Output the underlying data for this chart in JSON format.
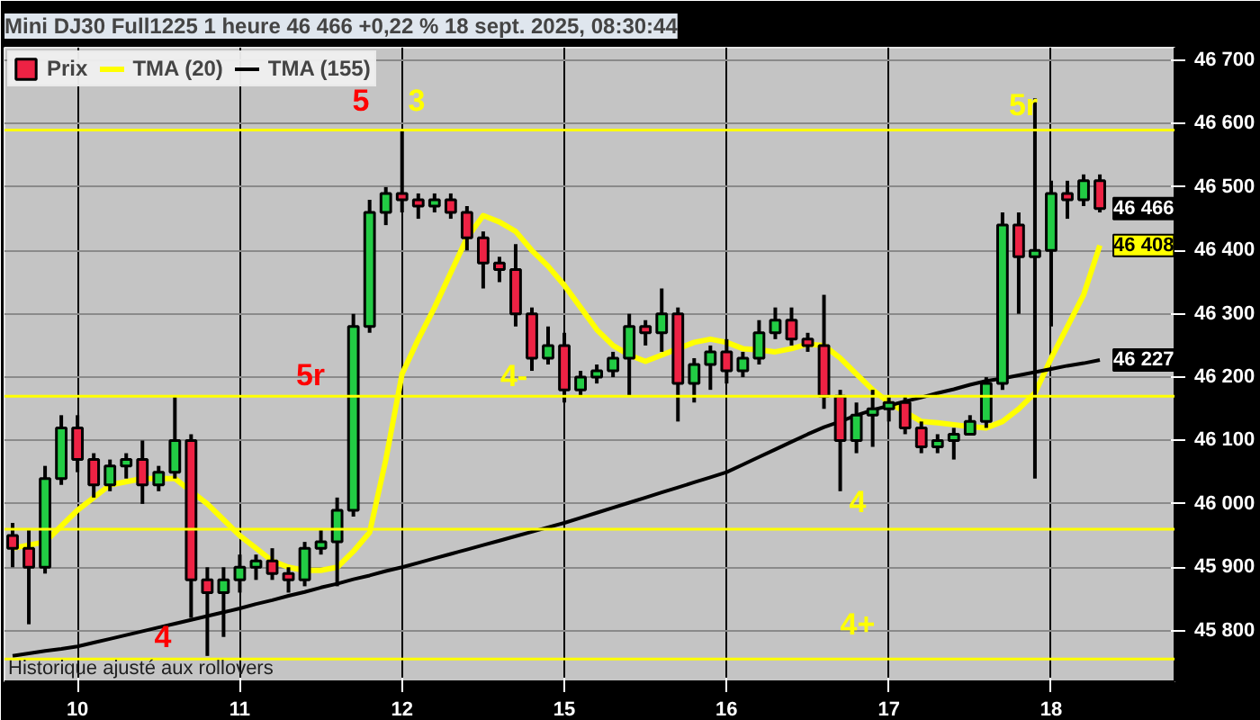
{
  "chart_data": {
    "type": "candlestick",
    "title": "Mini DJ30 Full1225 1 heure 46 466 +0,22 % 18 sept. 2025, 08:30:44",
    "categories": [
      null,
      null,
      null,
      null,
      "10",
      null,
      null,
      null,
      null,
      null,
      null,
      null,
      null,
      null,
      "11",
      null,
      null,
      null,
      null,
      null,
      null,
      null,
      null,
      null,
      "12",
      null,
      null,
      null,
      null,
      null,
      null,
      null,
      null,
      null,
      "15",
      null,
      null,
      null,
      null,
      null,
      null,
      null,
      null,
      null,
      "16",
      null,
      null,
      null,
      null,
      null,
      null,
      null,
      null,
      null,
      "17",
      null,
      null,
      null,
      null,
      null,
      null,
      null,
      null,
      null,
      "18",
      null,
      null,
      null
    ],
    "series": [
      {
        "name": "Prix",
        "color": "#000000",
        "ohlc": [
          [
            45950,
            45970,
            45900,
            45930
          ],
          [
            45930,
            45960,
            45810,
            45900
          ],
          [
            45900,
            46060,
            45890,
            46040
          ],
          [
            46040,
            46140,
            46030,
            46120
          ],
          [
            46120,
            46140,
            46050,
            46070
          ],
          [
            46070,
            46080,
            46010,
            46030
          ],
          [
            46030,
            46070,
            46020,
            46060
          ],
          [
            46060,
            46080,
            46040,
            46070
          ],
          [
            46070,
            46100,
            46000,
            46030
          ],
          [
            46030,
            46060,
            46020,
            46050
          ],
          [
            46050,
            46170,
            46040,
            46100
          ],
          [
            46100,
            46110,
            45820,
            45880
          ],
          [
            45880,
            45900,
            45760,
            45860
          ],
          [
            45860,
            45900,
            45790,
            45880
          ],
          [
            45880,
            45920,
            45860,
            45900
          ],
          [
            45900,
            45920,
            45880,
            45910
          ],
          [
            45910,
            45930,
            45880,
            45890
          ],
          [
            45890,
            45900,
            45860,
            45880
          ],
          [
            45880,
            45940,
            45870,
            45930
          ],
          [
            45930,
            45960,
            45920,
            45940
          ],
          [
            45940,
            46010,
            45870,
            45990
          ],
          [
            45990,
            46300,
            45980,
            46280
          ],
          [
            46280,
            46480,
            46270,
            46460
          ],
          [
            46460,
            46500,
            46440,
            46490
          ],
          [
            46490,
            46590,
            46460,
            46480
          ],
          [
            46480,
            46490,
            46450,
            46470
          ],
          [
            46470,
            46490,
            46460,
            46480
          ],
          [
            46480,
            46490,
            46450,
            46460
          ],
          [
            46460,
            46470,
            46400,
            46420
          ],
          [
            46420,
            46430,
            46340,
            46380
          ],
          [
            46380,
            46390,
            46350,
            46370
          ],
          [
            46370,
            46410,
            46280,
            46300
          ],
          [
            46300,
            46310,
            46210,
            46230
          ],
          [
            46230,
            46280,
            46220,
            46250
          ],
          [
            46250,
            46270,
            46160,
            46180
          ],
          [
            46180,
            46210,
            46170,
            46200
          ],
          [
            46200,
            46220,
            46190,
            46210
          ],
          [
            46210,
            46240,
            46200,
            46230
          ],
          [
            46230,
            46300,
            46170,
            46280
          ],
          [
            46280,
            46290,
            46250,
            46270
          ],
          [
            46270,
            46340,
            46240,
            46300
          ],
          [
            46300,
            46310,
            46130,
            46190
          ],
          [
            46190,
            46230,
            46160,
            46220
          ],
          [
            46220,
            46250,
            46180,
            46240
          ],
          [
            46240,
            46260,
            46190,
            46210
          ],
          [
            46210,
            46240,
            46200,
            46230
          ],
          [
            46230,
            46290,
            46220,
            46270
          ],
          [
            46270,
            46310,
            46260,
            46290
          ],
          [
            46290,
            46310,
            46250,
            46260
          ],
          [
            46260,
            46270,
            46240,
            46250
          ],
          [
            46250,
            46330,
            46150,
            46170
          ],
          [
            46170,
            46180,
            46020,
            46100
          ],
          [
            46100,
            46160,
            46080,
            46140
          ],
          [
            46140,
            46180,
            46090,
            46150
          ],
          [
            46150,
            46170,
            46130,
            46160
          ],
          [
            46160,
            46170,
            46110,
            46120
          ],
          [
            46120,
            46130,
            46080,
            46090
          ],
          [
            46090,
            46110,
            46080,
            46100
          ],
          [
            46100,
            46120,
            46070,
            46110
          ],
          [
            46110,
            46140,
            46110,
            46130
          ],
          [
            46130,
            46200,
            46120,
            46190
          ],
          [
            46190,
            46460,
            46180,
            46440
          ],
          [
            46440,
            46460,
            46300,
            46390
          ],
          [
            46390,
            46640,
            46040,
            46400
          ],
          [
            46400,
            46510,
            46280,
            46490
          ],
          [
            46490,
            46510,
            46450,
            46480
          ],
          [
            46480,
            46520,
            46470,
            46510
          ],
          [
            46510,
            46520,
            46460,
            46466
          ]
        ],
        "value_labels": [
          null,
          null,
          null,
          null,
          null,
          null,
          null,
          null,
          null,
          null,
          null,
          null,
          null,
          null,
          null,
          null,
          null,
          null,
          null,
          null,
          null,
          null,
          null,
          null,
          null,
          null,
          null,
          null,
          null,
          null,
          null,
          null,
          null,
          null,
          null,
          null,
          null,
          null,
          null,
          null,
          null,
          null,
          null,
          null,
          null,
          null,
          null,
          null,
          null,
          null,
          null,
          null,
          null,
          null,
          null,
          null,
          null,
          null,
          null,
          null,
          null,
          null,
          null,
          null,
          null,
          null,
          null,
          "46 466"
        ]
      },
      {
        "name": "TMA (20)",
        "type": "line",
        "color": "#ffff00",
        "values": [
          45930,
          45935,
          45940,
          45965,
          45990,
          46010,
          46030,
          46035,
          46040,
          46040,
          46040,
          46020,
          46000,
          45975,
          45950,
          45930,
          45910,
          45900,
          45895,
          45895,
          45900,
          45925,
          45955,
          46070,
          46205,
          46260,
          46310,
          46365,
          46420,
          46455,
          46445,
          46430,
          46400,
          46375,
          46345,
          46310,
          46275,
          46250,
          46235,
          46225,
          46235,
          46245,
          46255,
          46260,
          46255,
          46245,
          46243,
          46240,
          46245,
          46252,
          46250,
          46230,
          46205,
          46180,
          46160,
          46145,
          46130,
          46128,
          46125,
          46122,
          46120,
          46130,
          46150,
          46175,
          46230,
          46280,
          46330,
          46408
        ],
        "value_labels": [
          null,
          null,
          null,
          null,
          null,
          null,
          null,
          null,
          null,
          null,
          null,
          null,
          null,
          null,
          null,
          null,
          null,
          null,
          null,
          null,
          null,
          null,
          null,
          null,
          null,
          null,
          null,
          null,
          null,
          null,
          null,
          null,
          null,
          null,
          null,
          null,
          null,
          null,
          null,
          null,
          null,
          null,
          null,
          null,
          null,
          null,
          null,
          null,
          null,
          null,
          null,
          null,
          null,
          null,
          null,
          null,
          null,
          null,
          null,
          null,
          null,
          null,
          null,
          null,
          null,
          null,
          null,
          "46 408"
        ]
      },
      {
        "name": "TMA (155)",
        "type": "line",
        "color": "#000000",
        "values": [
          45760,
          45764,
          45768,
          45771,
          45775,
          45781,
          45787,
          45793,
          45799,
          45805,
          45811,
          45817,
          45823,
          45829,
          45835,
          45842,
          45848,
          45855,
          45861,
          45868,
          45874,
          45881,
          45887,
          45894,
          45900,
          45907,
          45914,
          45921,
          45928,
          45935,
          45942,
          45949,
          45956,
          45963,
          45970,
          45978,
          45986,
          45994,
          46002,
          46010,
          46018,
          46026,
          46034,
          46042,
          46050,
          46062,
          46074,
          46086,
          46098,
          46110,
          46121,
          46130,
          46140,
          46148,
          46155,
          46162,
          46168,
          46175,
          46181,
          46188,
          46194,
          46198,
          46203,
          46208,
          46213,
          46218,
          46222,
          46227
        ],
        "value_labels": [
          null,
          null,
          null,
          null,
          null,
          null,
          null,
          null,
          null,
          null,
          null,
          null,
          null,
          null,
          null,
          null,
          null,
          null,
          null,
          null,
          null,
          null,
          null,
          null,
          null,
          null,
          null,
          null,
          null,
          null,
          null,
          null,
          null,
          null,
          null,
          null,
          null,
          null,
          null,
          null,
          null,
          null,
          null,
          null,
          null,
          null,
          null,
          null,
          null,
          null,
          null,
          null,
          null,
          null,
          null,
          null,
          null,
          null,
          null,
          null,
          null,
          null,
          null,
          null,
          null,
          null,
          null,
          "46 227"
        ]
      }
    ],
    "ylim": [
      45720,
      46720
    ],
    "yticks": [
      {
        "value": 45800,
        "label": "45 800"
      },
      {
        "value": 45900,
        "label": "45 900"
      },
      {
        "value": 46000,
        "label": "46 000"
      },
      {
        "value": 46100,
        "label": "46 100"
      },
      {
        "value": 46200,
        "label": "46 200"
      },
      {
        "value": 46300,
        "label": "46 300"
      },
      {
        "value": 46400,
        "label": "46 400"
      },
      {
        "value": 46500,
        "label": "46 500"
      },
      {
        "value": 46600,
        "label": "46 600"
      },
      {
        "value": 46700,
        "label": "46 700"
      }
    ],
    "ref_lines": [
      {
        "axis": "y",
        "value": 46590,
        "color": "#ffff00"
      },
      {
        "axis": "y",
        "value": 46170,
        "color": "#ffff00"
      },
      {
        "axis": "y",
        "value": 45960,
        "color": "#ffff00"
      },
      {
        "axis": "y",
        "value": 45755,
        "color": "#ffff00"
      }
    ],
    "annotations": [
      "5",
      "3",
      "5r",
      "4-",
      "4",
      "4",
      "4+",
      "5r",
      "Historique ajusté aux rollovers"
    ],
    "grid": true,
    "legend": "top left"
  }
}
